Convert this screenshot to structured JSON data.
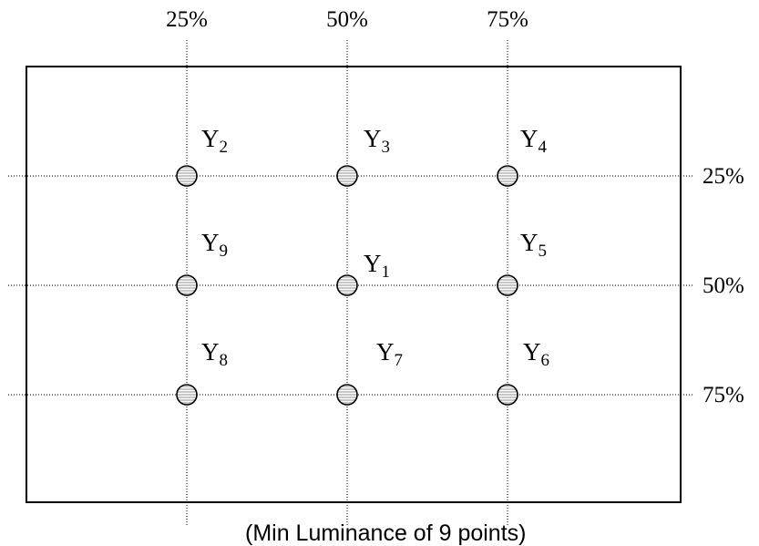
{
  "column_labels": [
    "25%",
    "50%",
    "75%"
  ],
  "row_labels": [
    "25%",
    "50%",
    "75%"
  ],
  "points": [
    {
      "name": "Y",
      "sub": "2",
      "col": 0,
      "row": 0
    },
    {
      "name": "Y",
      "sub": "3",
      "col": 1,
      "row": 0
    },
    {
      "name": "Y",
      "sub": "4",
      "col": 2,
      "row": 0
    },
    {
      "name": "Y",
      "sub": "9",
      "col": 0,
      "row": 1
    },
    {
      "name": "Y",
      "sub": "1",
      "col": 1,
      "row": 1
    },
    {
      "name": "Y",
      "sub": "5",
      "col": 2,
      "row": 1
    },
    {
      "name": "Y",
      "sub": "8",
      "col": 0,
      "row": 2
    },
    {
      "name": "Y",
      "sub": "7",
      "col": 1,
      "row": 2
    },
    {
      "name": "Y",
      "sub": "6",
      "col": 2,
      "row": 2
    }
  ],
  "caption": "(Min Luminance of 9 points)",
  "colors": {
    "line": "#000000",
    "point_fill": "#c8c8c8",
    "point_stripe": "#ffffff",
    "background": "#ffffff"
  }
}
